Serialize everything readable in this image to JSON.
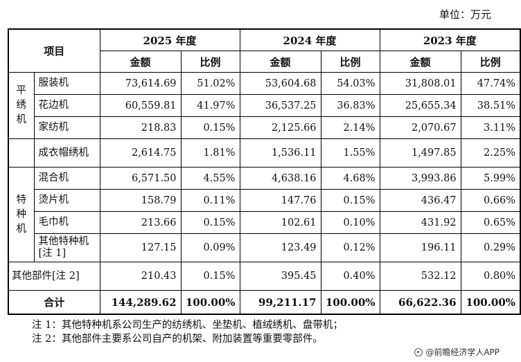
{
  "unit": "单位：万元",
  "header": {
    "item": "项目",
    "years": [
      "2025 年度",
      "2024 年度",
      "2023 年度"
    ],
    "amount": "金额",
    "ratio": "比例"
  },
  "groups": {
    "flat": "平绣机",
    "special": "特种机"
  },
  "rows": [
    {
      "name": "服装机",
      "values": [
        "73,614.69",
        "51.02%",
        "53,604.68",
        "54.03%",
        "31,808.01",
        "47.74%"
      ]
    },
    {
      "name": "花边机",
      "values": [
        "60,559.81",
        "41.97%",
        "36,537.25",
        "36.83%",
        "25,655.34",
        "38.51%"
      ]
    },
    {
      "name": "家纺机",
      "values": [
        "218.83",
        "0.15%",
        "2,125.66",
        "2.14%",
        "2,070.67",
        "3.11%"
      ]
    },
    {
      "name": "成衣帽绣机",
      "values": [
        "2,614.75",
        "1.81%",
        "1,536.11",
        "1.55%",
        "1,497.85",
        "2.25%"
      ]
    },
    {
      "name": "混合机",
      "values": [
        "6,571.50",
        "4.55%",
        "4,638.16",
        "4.68%",
        "3,993.86",
        "5.99%"
      ]
    },
    {
      "name": "烫片机",
      "values": [
        "158.79",
        "0.11%",
        "147.76",
        "0.15%",
        "436.47",
        "0.66%"
      ]
    },
    {
      "name": "毛巾机",
      "values": [
        "213.66",
        "0.15%",
        "102.61",
        "0.10%",
        "431.92",
        "0.65%"
      ]
    },
    {
      "name": "其他特种机[注 1]",
      "values": [
        "127.15",
        "0.09%",
        "123.49",
        "0.12%",
        "196.11",
        "0.29%"
      ]
    },
    {
      "name": "其他部件[注 2]",
      "values": [
        "210.43",
        "0.15%",
        "395.45",
        "0.40%",
        "532.12",
        "0.80%"
      ]
    }
  ],
  "total": {
    "label": "合计",
    "values": [
      "144,289.62",
      "100.00%",
      "99,211.17",
      "100.00%",
      "66,622.36",
      "100.00%"
    ]
  },
  "notes": [
    "注 1：其他特种机系公司生产的纺绣机、坐垫机、植绒绣机、盘带机；",
    "注 2：其他部件主要系公司自产的机架、附加装置等重要零部件。"
  ],
  "watermark": "@前瞻经济学人APP",
  "icons": {
    "watermark": "circle-logo-icon"
  }
}
